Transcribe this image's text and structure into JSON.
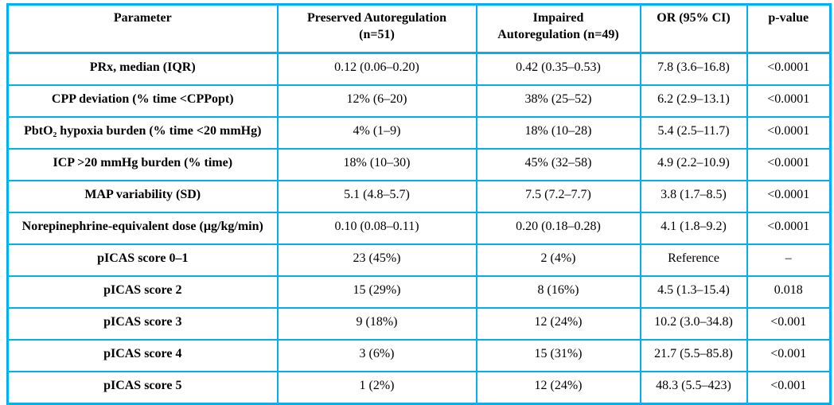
{
  "table": {
    "border_color": "#00b0f0",
    "text_color": "#000000",
    "columns": [
      "Parameter",
      "Preserved Autoregulation\n(n=51)",
      "Impaired\nAutoregulation (n=49)",
      "OR (95% CI)",
      "p-value"
    ],
    "rows": [
      {
        "parameter": "PRx, median (IQR)",
        "preserved": "0.12 (0.06–0.20)",
        "impaired": "0.42 (0.35–0.53)",
        "or_ci": "7.8 (3.6–16.8)",
        "p_value": "<0.0001"
      },
      {
        "parameter": "CPP deviation (% time <CPPopt)",
        "preserved": "12% (6–20)",
        "impaired": "38% (25–52)",
        "or_ci": "6.2 (2.9–13.1)",
        "p_value": "<0.0001"
      },
      {
        "parameter": "PbtO₂ hypoxia burden (% time <20 mmHg)",
        "preserved": "4% (1–9)",
        "impaired": "18% (10–28)",
        "or_ci": "5.4 (2.5–11.7)",
        "p_value": "<0.0001"
      },
      {
        "parameter": "ICP >20 mmHg burden (% time)",
        "preserved": "18% (10–30)",
        "impaired": "45% (32–58)",
        "or_ci": "4.9 (2.2–10.9)",
        "p_value": "<0.0001"
      },
      {
        "parameter": "MAP variability (SD)",
        "preserved": "5.1 (4.8–5.7)",
        "impaired": "7.5 (7.2–7.7)",
        "or_ci": "3.8 (1.7–8.5)",
        "p_value": "<0.0001"
      },
      {
        "parameter": "Norepinephrine-equivalent dose (µg/kg/min)",
        "preserved": "0.10 (0.08–0.11)",
        "impaired": "0.20 (0.18–0.28)",
        "or_ci": "4.1 (1.8–9.2)",
        "p_value": "<0.0001"
      },
      {
        "parameter": "pICAS score 0–1",
        "preserved": "23 (45%)",
        "impaired": "2 (4%)",
        "or_ci": "Reference",
        "p_value": "–"
      },
      {
        "parameter": "pICAS score 2",
        "preserved": "15 (29%)",
        "impaired": "8 (16%)",
        "or_ci": "4.5 (1.3–15.4)",
        "p_value": "0.018"
      },
      {
        "parameter": "pICAS score 3",
        "preserved": "9 (18%)",
        "impaired": "12 (24%)",
        "or_ci": "10.2 (3.0–34.8)",
        "p_value": "<0.001"
      },
      {
        "parameter": "pICAS score 4",
        "preserved": "3 (6%)",
        "impaired": "15 (31%)",
        "or_ci": "21.7 (5.5–85.8)",
        "p_value": "<0.001"
      },
      {
        "parameter": "pICAS score 5",
        "preserved": "1 (2%)",
        "impaired": "12 (24%)",
        "or_ci": "48.3 (5.5–423)",
        "p_value": "<0.001"
      }
    ]
  }
}
